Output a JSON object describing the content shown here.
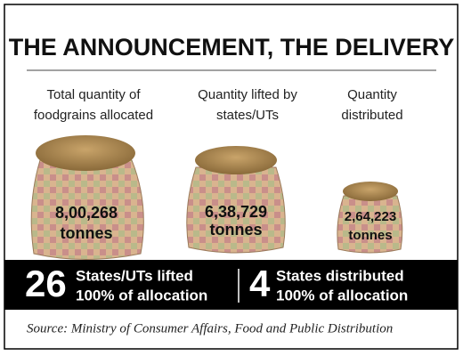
{
  "header": {
    "title": "THE ANNOUNCEMENT, THE DELIVERY"
  },
  "items": [
    {
      "label_lines": [
        "Total quantity of",
        "foodgrains allocated"
      ],
      "value": "8,00,268",
      "unit": "tonnes"
    },
    {
      "label_lines": [
        "Quantity lifted by",
        "states/UTs"
      ],
      "value": "6,38,729",
      "unit": "tonnes"
    },
    {
      "label_lines": [
        "Quantity",
        "distributed"
      ],
      "value": "2,64,223",
      "unit": "tonnes"
    }
  ],
  "stats": [
    {
      "number": "26",
      "lines": [
        "States/UTs lifted",
        "100% of allocation"
      ]
    },
    {
      "number": "4",
      "lines": [
        "States distributed",
        "100% of allocation"
      ]
    }
  ],
  "source": "Source: Ministry of Consumer Affairs, Food and Public Distribution"
}
